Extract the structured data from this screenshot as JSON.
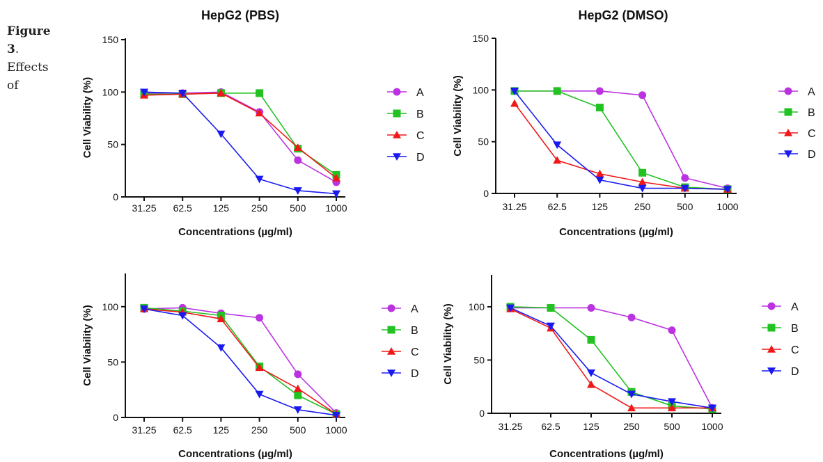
{
  "caption": {
    "figure_word": "Figure",
    "figure_number": "3",
    "text_line1": "Effects",
    "text_line2": "of"
  },
  "colors": {
    "A": "#bb33e0",
    "B": "#22c222",
    "C": "#f01818",
    "D": "#1a1af0"
  },
  "marker_shapes": {
    "A": "circle",
    "B": "square",
    "C": "triangle-up",
    "D": "triangle-down"
  },
  "chart_data": [
    {
      "type": "line",
      "title": "HepG2 (PBS)",
      "xlabel": "Concentrations (µg/ml)",
      "ylabel": "Cell Viability (%)",
      "categories": [
        "31.25",
        "62.5",
        "125",
        "250",
        "500",
        "1000"
      ],
      "ylim": [
        0,
        150
      ],
      "yticks": [
        0,
        50,
        100,
        150
      ],
      "legend_position": "right",
      "series": [
        {
          "name": "A",
          "values": [
            99,
            99,
            100,
            81,
            35,
            14
          ]
        },
        {
          "name": "B",
          "values": [
            98,
            98,
            99,
            99,
            46,
            21
          ]
        },
        {
          "name": "C",
          "values": [
            97,
            98,
            99,
            80,
            47,
            18
          ]
        },
        {
          "name": "D",
          "values": [
            100,
            99,
            60,
            17,
            6,
            3
          ]
        }
      ]
    },
    {
      "type": "line",
      "title": "HepG2 (DMSO)",
      "xlabel": "Concentrations (µg/ml)",
      "ylabel": "Cell Viability (%)",
      "categories": [
        "31.25",
        "62.5",
        "125",
        "250",
        "500",
        "1000"
      ],
      "ylim": [
        0,
        150
      ],
      "yticks": [
        0,
        50,
        100,
        150
      ],
      "legend_position": "right",
      "series": [
        {
          "name": "A",
          "values": [
            99,
            99,
            99,
            95,
            15,
            5
          ]
        },
        {
          "name": "B",
          "values": [
            99,
            99,
            83,
            20,
            6,
            4
          ]
        },
        {
          "name": "C",
          "values": [
            87,
            32,
            19,
            11,
            5,
            4
          ]
        },
        {
          "name": "D",
          "values": [
            99,
            47,
            13,
            5,
            5,
            4
          ]
        }
      ]
    },
    {
      "type": "line",
      "title": "",
      "xlabel": "Concentrations (µg/ml)",
      "ylabel": "Cell Viability (%)",
      "categories": [
        "31.25",
        "62.5",
        "125",
        "250",
        "500",
        "1000"
      ],
      "ylim": [
        0,
        130
      ],
      "yticks": [
        0,
        50,
        100
      ],
      "legend_position": "right",
      "series": [
        {
          "name": "A",
          "values": [
            98,
            99,
            94,
            90,
            39,
            4
          ]
        },
        {
          "name": "B",
          "values": [
            99,
            96,
            92,
            46,
            20,
            3
          ]
        },
        {
          "name": "C",
          "values": [
            98,
            95,
            89,
            45,
            26,
            3
          ]
        },
        {
          "name": "D",
          "values": [
            98,
            92,
            63,
            21,
            7,
            2
          ]
        }
      ]
    },
    {
      "type": "line",
      "title": "",
      "xlabel": "Concentrations (µg/ml)",
      "ylabel": "Cell Viability (%)",
      "categories": [
        "31.25",
        "62.5",
        "125",
        "250",
        "500",
        "1000"
      ],
      "ylim": [
        0,
        130
      ],
      "yticks": [
        0,
        50,
        100
      ],
      "legend_position": "right",
      "series": [
        {
          "name": "A",
          "values": [
            99,
            99,
            99,
            90,
            78,
            5
          ]
        },
        {
          "name": "B",
          "values": [
            100,
            99,
            69,
            20,
            7,
            4
          ]
        },
        {
          "name": "C",
          "values": [
            98,
            80,
            27,
            5,
            5,
            5
          ]
        },
        {
          "name": "D",
          "values": [
            99,
            82,
            38,
            18,
            11,
            5
          ]
        }
      ]
    }
  ]
}
